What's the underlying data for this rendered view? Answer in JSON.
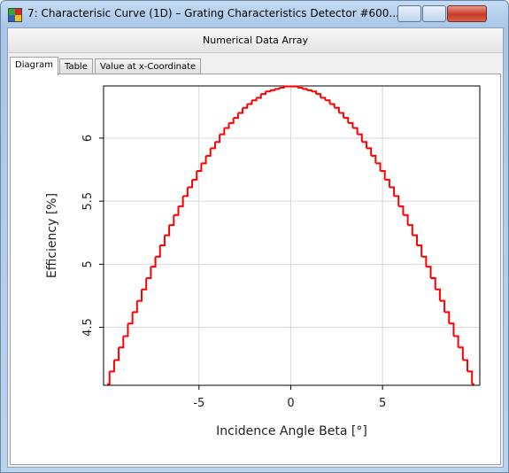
{
  "window": {
    "title": "7: Characterisic Curve (1D) – Grating Characteristics Detector #600...",
    "subtitle": "Numerical Data Array",
    "tabs": [
      "Diagram",
      "Table",
      "Value at x-Coordinate"
    ]
  },
  "chart_data": {
    "type": "step",
    "xlabel": "Incidence Angle Beta [°]",
    "ylabel": "Efficiency [%]",
    "x": [
      -10,
      -9.75,
      -9.5,
      -9.25,
      -9,
      -8.75,
      -8.5,
      -8.25,
      -8,
      -7.75,
      -7.5,
      -7.25,
      -7,
      -6.75,
      -6.5,
      -6.25,
      -6,
      -5.75,
      -5.5,
      -5.25,
      -5,
      -4.75,
      -4.5,
      -4.25,
      -4,
      -3.75,
      -3.5,
      -3.25,
      -3,
      -2.75,
      -2.5,
      -2.25,
      -2,
      -1.75,
      -1.5,
      -1.25,
      -1,
      -0.75,
      -0.5,
      -0.25,
      0,
      0.25,
      0.5,
      0.75,
      1,
      1.25,
      1.5,
      1.75,
      2,
      2.25,
      2.5,
      2.75,
      3,
      3.25,
      3.5,
      3.75,
      4,
      4.25,
      4.5,
      4.75,
      5,
      5.25,
      5.5,
      5.75,
      6,
      6.25,
      6.5,
      6.75,
      7,
      7.25,
      7.5,
      7.75,
      8,
      8.25,
      8.5,
      8.75,
      9,
      9.25,
      9.5,
      9.75,
      10
    ],
    "series": [
      {
        "name": "Efficiency",
        "color": "#ff0000",
        "values": [
          4.05,
          4.15,
          4.24,
          4.34,
          4.43,
          4.53,
          4.62,
          4.71,
          4.8,
          4.89,
          4.98,
          5.06,
          5.15,
          5.23,
          5.31,
          5.39,
          5.46,
          5.54,
          5.61,
          5.67,
          5.74,
          5.8,
          5.86,
          5.92,
          5.97,
          6.03,
          6.08,
          6.12,
          6.16,
          6.2,
          6.24,
          6.27,
          6.3,
          6.32,
          6.35,
          6.37,
          6.38,
          6.39,
          6.4,
          6.41,
          6.41,
          6.41,
          6.4,
          6.39,
          6.38,
          6.37,
          6.35,
          6.32,
          6.3,
          6.27,
          6.24,
          6.2,
          6.16,
          6.12,
          6.08,
          6.03,
          5.97,
          5.92,
          5.86,
          5.8,
          5.74,
          5.67,
          5.61,
          5.54,
          5.46,
          5.39,
          5.31,
          5.23,
          5.15,
          5.06,
          4.98,
          4.89,
          4.8,
          4.71,
          4.62,
          4.53,
          4.43,
          4.34,
          4.24,
          4.15,
          4.05
        ]
      }
    ],
    "xlim": [
      -10.2,
      10.3
    ],
    "ylim": [
      4.04,
      6.414
    ],
    "xticks": [
      -5,
      0,
      5
    ],
    "yticks": [
      4.5,
      5,
      5.5,
      6
    ],
    "grid": true
  }
}
